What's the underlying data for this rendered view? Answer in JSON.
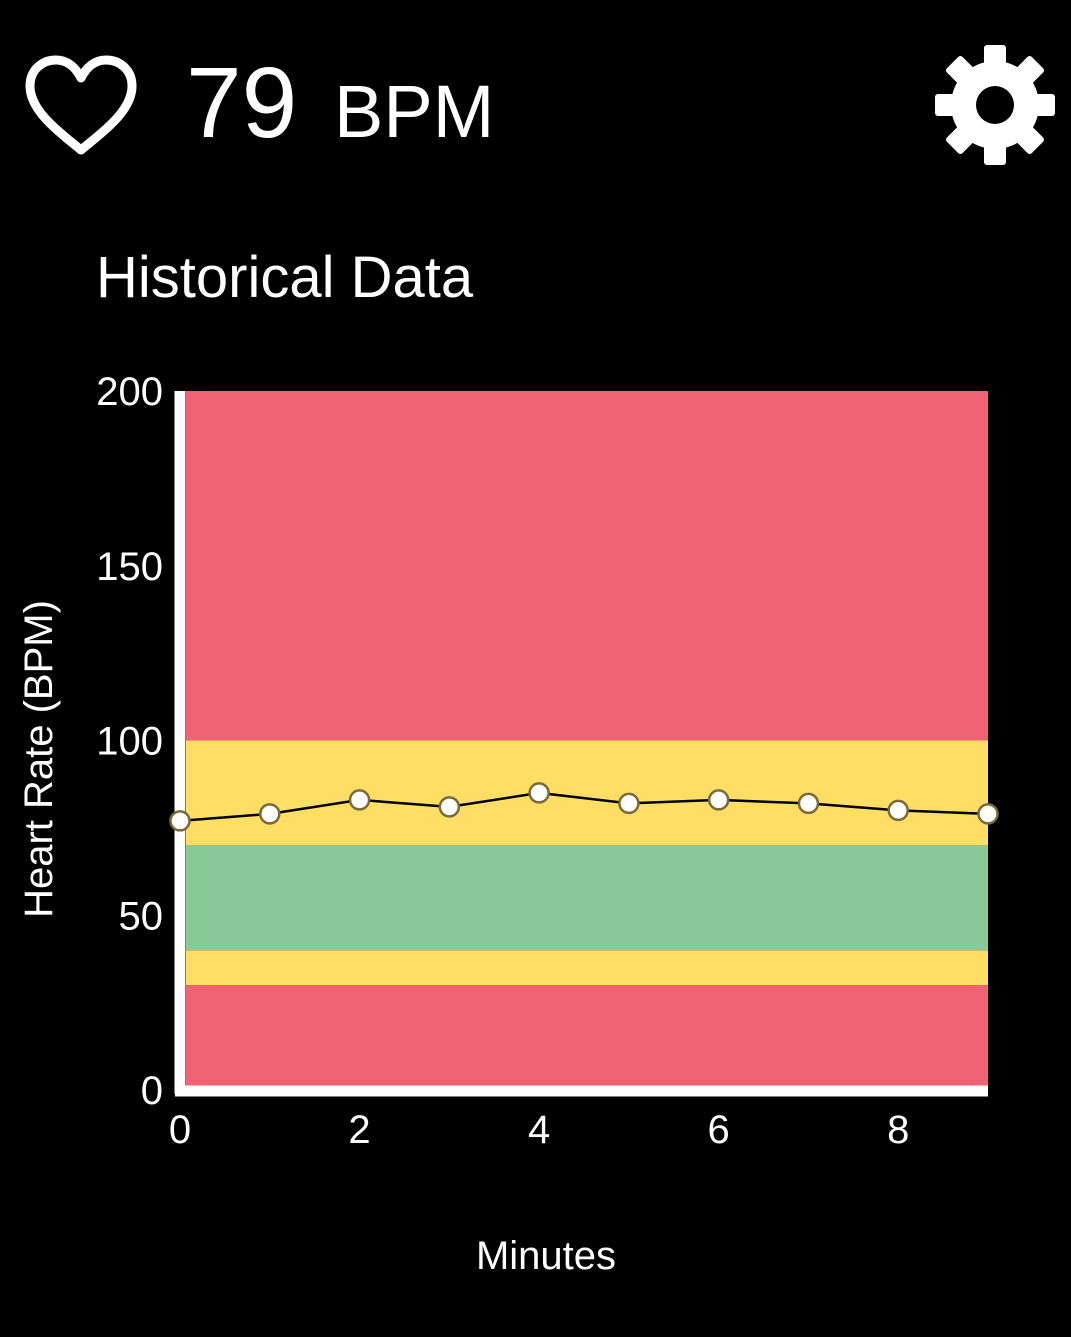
{
  "header": {
    "bpm_value": "79",
    "bpm_unit": "BPM",
    "heart_icon": "heart-outline-icon",
    "settings_icon": "gear-icon"
  },
  "section": {
    "title": "Historical Data"
  },
  "colors": {
    "background": "#000000",
    "danger": "#f16374",
    "warning": "#fede65",
    "normal": "#88c997",
    "line": "#000000",
    "point_fill": "#ffffff",
    "point_stroke": "#7a6a3a"
  },
  "chart_data": {
    "type": "line",
    "title": "",
    "xlabel": "Minutes",
    "ylabel": "Heart Rate (BPM)",
    "xlim": [
      0,
      9
    ],
    "ylim": [
      0,
      200
    ],
    "x_ticks": [
      0,
      2,
      4,
      6,
      8
    ],
    "y_ticks": [
      0,
      50,
      100,
      150,
      200
    ],
    "grid": false,
    "legend": "none",
    "zones": [
      {
        "from": 0,
        "to": 30,
        "level": "danger"
      },
      {
        "from": 30,
        "to": 40,
        "level": "warning"
      },
      {
        "from": 40,
        "to": 70,
        "level": "normal"
      },
      {
        "from": 70,
        "to": 100,
        "level": "warning"
      },
      {
        "from": 100,
        "to": 200,
        "level": "danger"
      }
    ],
    "series": [
      {
        "x": [
          0,
          1,
          2,
          3,
          4,
          5,
          6,
          7,
          8,
          9
        ],
        "values": [
          77,
          79,
          83,
          81,
          85,
          82,
          83,
          82,
          80,
          79
        ]
      }
    ]
  }
}
